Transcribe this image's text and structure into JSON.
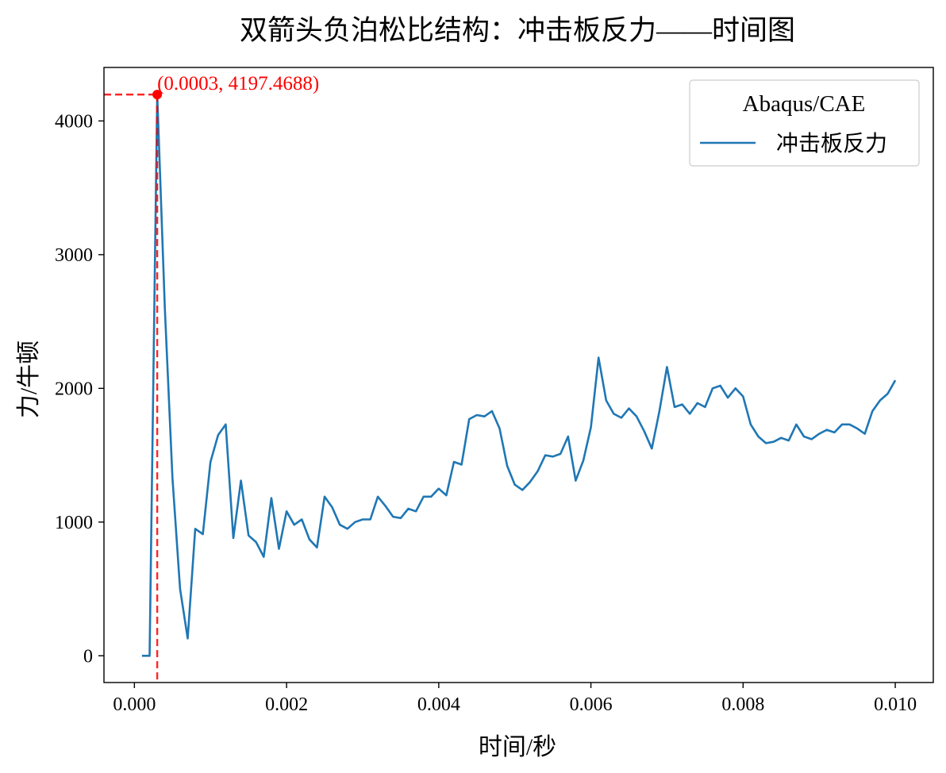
{
  "chart_data": {
    "type": "line",
    "title": "双箭头负泊松比结构：冲击板反力——时间图",
    "xlabel": "时间/秒",
    "ylabel": "力/牛顿",
    "xlim": [
      -0.0004,
      0.0105
    ],
    "ylim": [
      -200,
      4400
    ],
    "xticks": [
      0.0,
      0.002,
      0.004,
      0.006,
      0.008,
      0.01
    ],
    "xtick_labels": [
      "0.000",
      "0.002",
      "0.004",
      "0.006",
      "0.008",
      "0.010"
    ],
    "yticks": [
      0,
      1000,
      2000,
      3000,
      4000
    ],
    "ytick_labels": [
      "0",
      "1000",
      "2000",
      "3000",
      "4000"
    ],
    "grid": false,
    "legend": {
      "title": "Abaqus/CAE",
      "placement": "top-right"
    },
    "series": [
      {
        "name": "冲击板反力",
        "color": "#1f77b4",
        "x": [
          0.0001,
          0.0002,
          0.0003,
          0.0004,
          0.0005,
          0.0006,
          0.0007,
          0.0008,
          0.0009,
          0.001,
          0.0011,
          0.0012,
          0.0013,
          0.0014,
          0.0015,
          0.0016,
          0.0017,
          0.0018,
          0.0019,
          0.002,
          0.0021,
          0.0022,
          0.0023,
          0.0024,
          0.0025,
          0.0026,
          0.0027,
          0.0028,
          0.0029,
          0.003,
          0.0031,
          0.0032,
          0.0033,
          0.0034,
          0.0035,
          0.0036,
          0.0037,
          0.0038,
          0.0039,
          0.004,
          0.0041,
          0.0042,
          0.0043,
          0.0044,
          0.0045,
          0.0046,
          0.0047,
          0.0048,
          0.0049,
          0.005,
          0.0051,
          0.0052,
          0.0053,
          0.0054,
          0.0055,
          0.0056,
          0.0057,
          0.0058,
          0.0059,
          0.006,
          0.0061,
          0.0062,
          0.0063,
          0.0064,
          0.0065,
          0.0066,
          0.0067,
          0.0068,
          0.0069,
          0.007,
          0.0071,
          0.0072,
          0.0073,
          0.0074,
          0.0075,
          0.0076,
          0.0077,
          0.0078,
          0.0079,
          0.008,
          0.0081,
          0.0082,
          0.0083,
          0.0084,
          0.0085,
          0.0086,
          0.0087,
          0.0088,
          0.0089,
          0.009,
          0.0091,
          0.0092,
          0.0093,
          0.0094,
          0.0095,
          0.0096,
          0.0097,
          0.0098,
          0.0099,
          0.01
        ],
        "y": [
          0,
          0,
          4197.4688,
          2600,
          1330,
          500,
          130,
          950,
          910,
          1450,
          1650,
          1730,
          880,
          1310,
          900,
          850,
          740,
          1180,
          800,
          1080,
          980,
          1020,
          870,
          810,
          1190,
          1110,
          980,
          950,
          1000,
          1020,
          1020,
          1190,
          1120,
          1040,
          1030,
          1100,
          1080,
          1190,
          1190,
          1250,
          1200,
          1450,
          1430,
          1770,
          1800,
          1790,
          1830,
          1700,
          1420,
          1280,
          1240,
          1300,
          1380,
          1500,
          1490,
          1510,
          1640,
          1310,
          1460,
          1710,
          2230,
          1910,
          1810,
          1780,
          1850,
          1790,
          1680,
          1550,
          1830,
          2160,
          1860,
          1880,
          1810,
          1890,
          1860,
          2000,
          2020,
          1930,
          2000,
          1940,
          1730,
          1640,
          1590,
          1600,
          1630,
          1610,
          1730,
          1640,
          1620,
          1660,
          1690,
          1670,
          1730,
          1730,
          1700,
          1660,
          1830,
          1910,
          1960,
          2060
        ]
      }
    ],
    "annotation": {
      "x": 0.0003,
      "y": 4197.4688,
      "text": "(0.0003, 4197.4688)",
      "color": "#ff0000",
      "style": "dashed crosshair to axes"
    }
  }
}
